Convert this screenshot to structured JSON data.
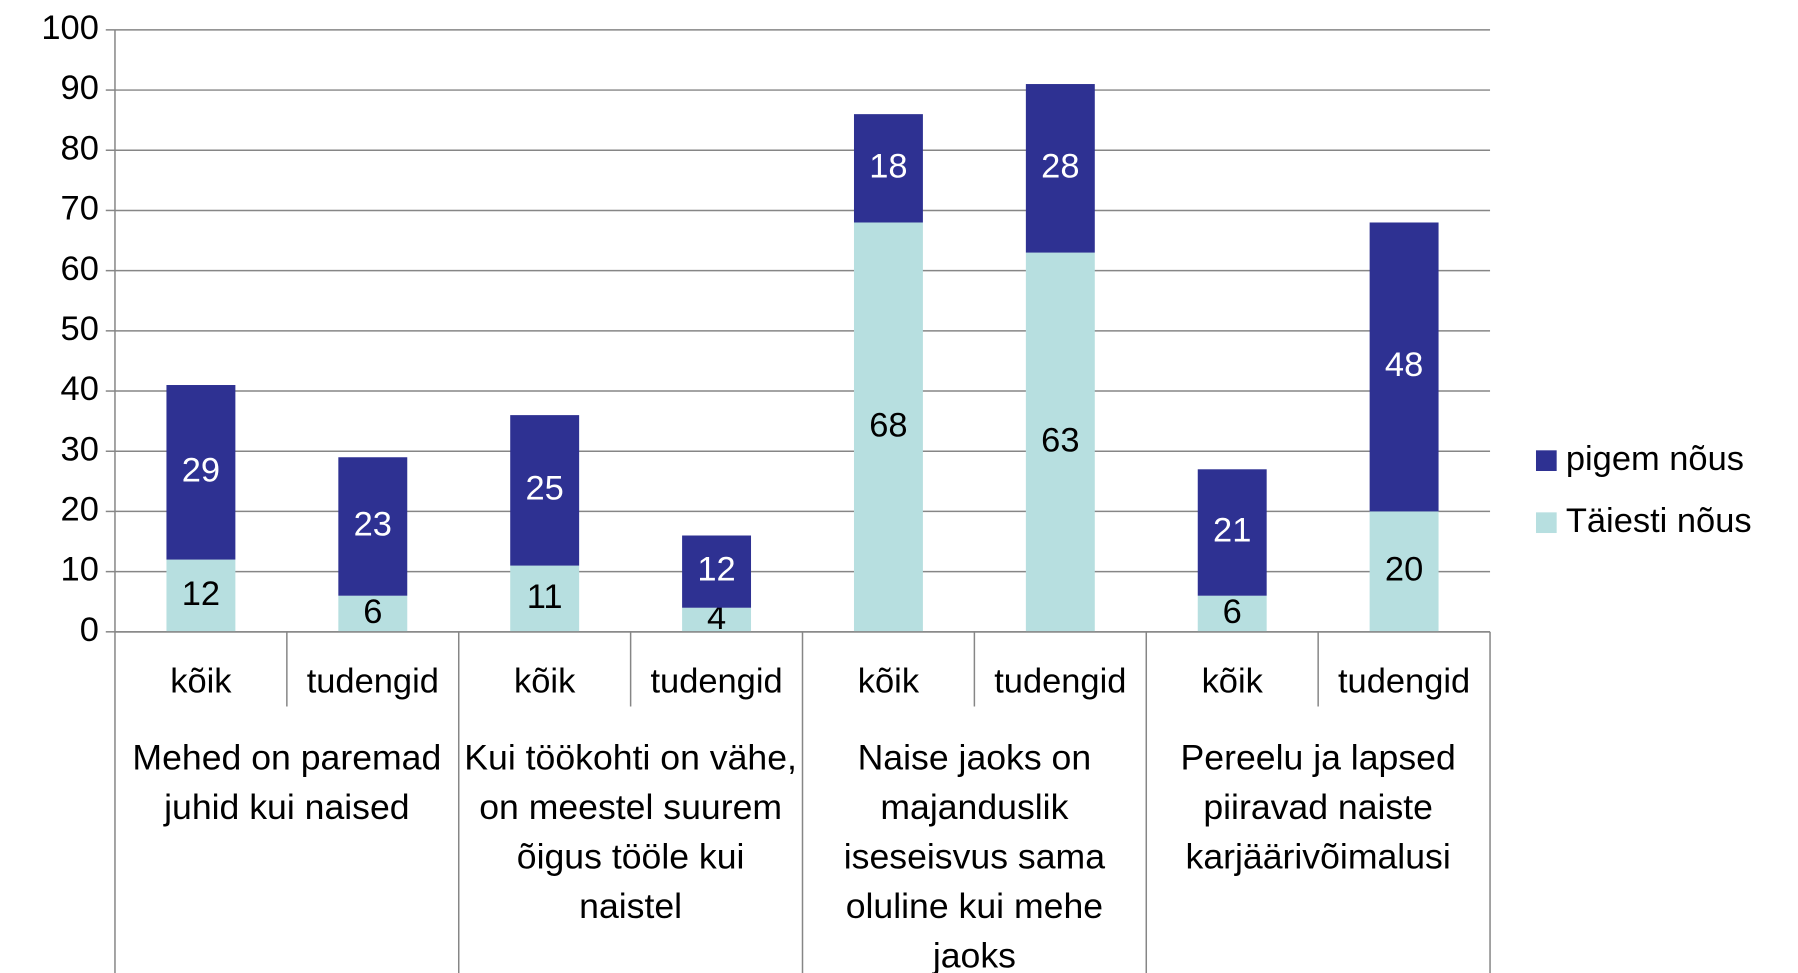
{
  "chart_data": {
    "type": "bar",
    "stacked": true,
    "categories": [
      "kõik",
      "tudengid",
      "kõik",
      "tudengid",
      "kõik",
      "tudengid",
      "kõik",
      "tudengid"
    ],
    "groups": [
      "Mehed on paremad juhid kui naised",
      "Kui töökohti on vähe, on meestel suurem õigus tööle kui naistel",
      "Naise jaoks on majanduslik iseseisvus sama oluline kui mehe jaoks",
      "Pereelu ja lapsed piiravad naiste karjäärivõimalusi"
    ],
    "series": [
      {
        "name": "Täiesti nõus",
        "color": "#b7dfe0",
        "label_color": "#000000",
        "values": [
          12,
          6,
          11,
          4,
          68,
          63,
          6,
          20
        ]
      },
      {
        "name": "pigem nõus",
        "color": "#2e3192",
        "label_color": "#ffffff",
        "values": [
          29,
          23,
          25,
          12,
          18,
          28,
          21,
          48
        ]
      }
    ],
    "ylim": [
      0,
      100
    ],
    "yticks": [
      0,
      10,
      20,
      30,
      40,
      50,
      60,
      70,
      80,
      90,
      100
    ],
    "grid": true,
    "legend": "right"
  }
}
